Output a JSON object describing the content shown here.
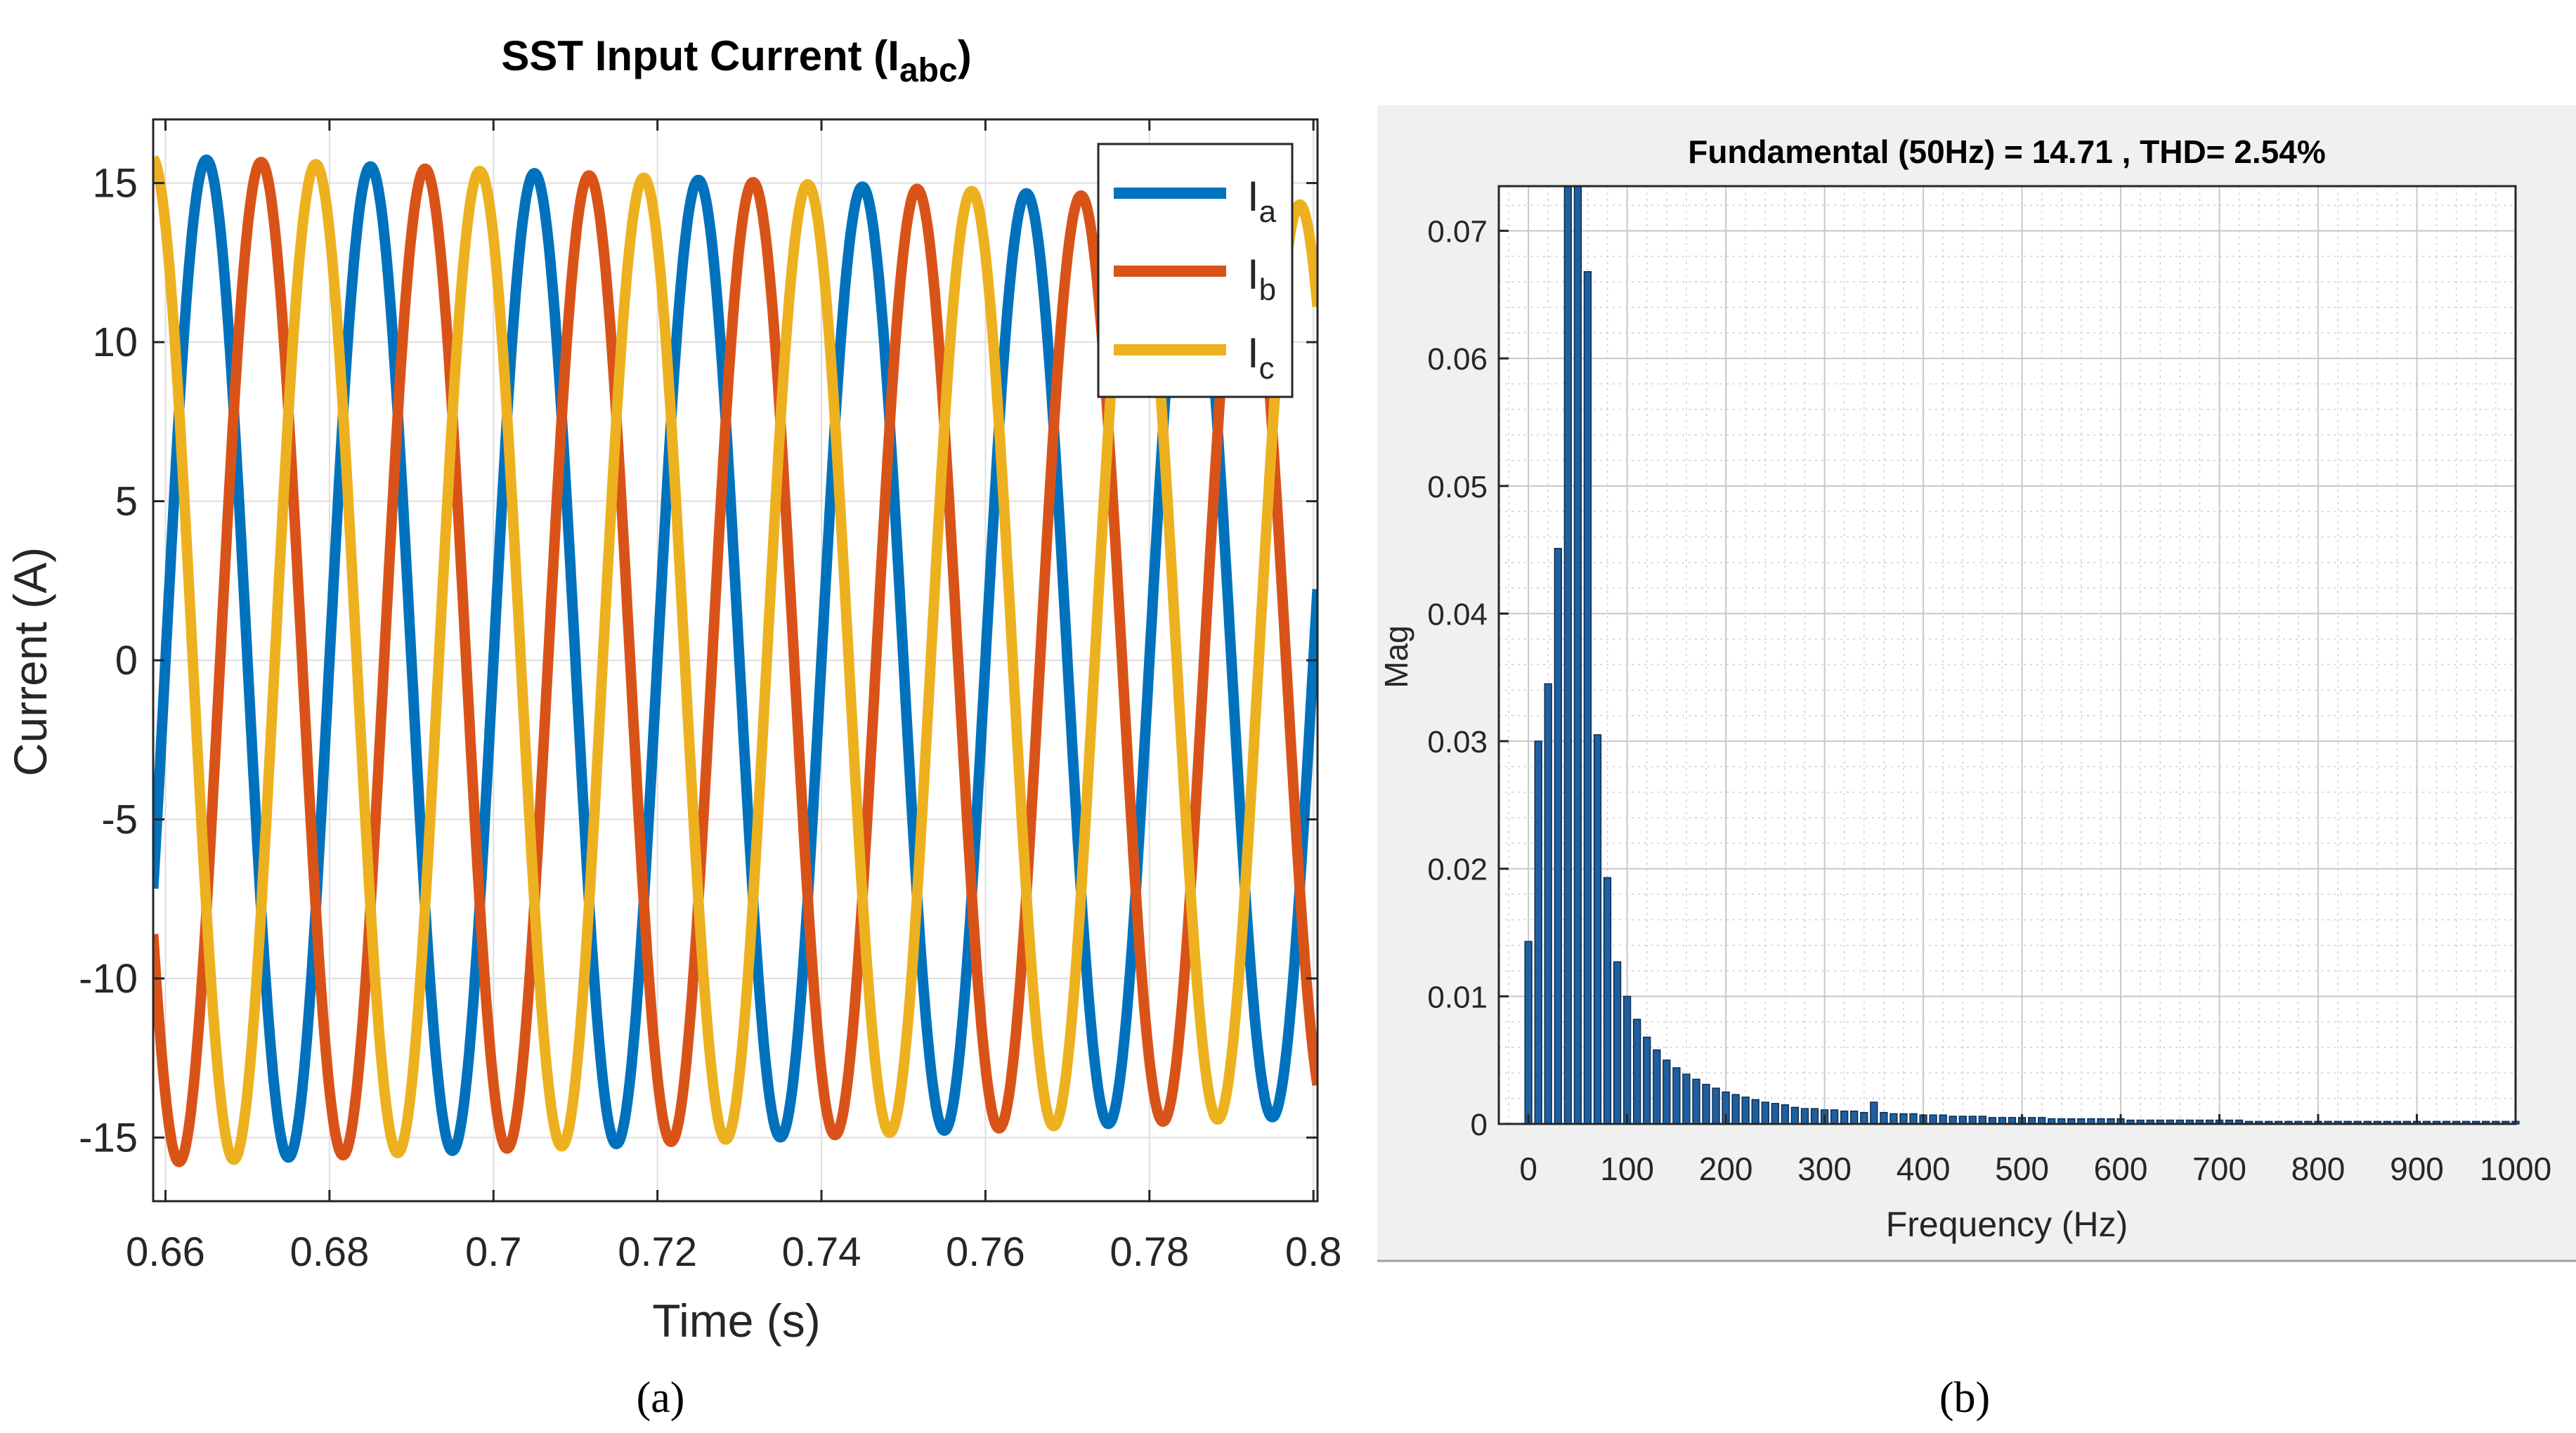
{
  "panel_a": {
    "caption": "(a)",
    "legend": [
      {
        "name": "I",
        "sub": "a",
        "color": "#0072BD"
      },
      {
        "name": "I",
        "sub": "b",
        "color": "#D95319"
      },
      {
        "name": "I",
        "sub": "c",
        "color": "#EDB120"
      }
    ]
  },
  "panel_b": {
    "caption": "(b)"
  },
  "chart_data": [
    {
      "type": "line",
      "title": "SST Input Current (I",
      "title_sub": "abc",
      "title_close": ")",
      "xlabel": "Time (s)",
      "ylabel": "Current (A)",
      "xlim": [
        0.6585,
        0.8005
      ],
      "ylim": [
        -17,
        17
      ],
      "xticks": [
        0.66,
        0.68,
        0.7,
        0.72,
        0.74,
        0.76,
        0.78,
        0.8
      ],
      "xtick_labels": [
        "0.66",
        "0.68",
        "0.7",
        "0.72",
        "0.74",
        "0.76",
        "0.78",
        "0.8"
      ],
      "yticks": [
        -15,
        -10,
        -5,
        0,
        5,
        10,
        15
      ],
      "ytick_labels": [
        "-15",
        "-10",
        "-5",
        "0",
        "5",
        "10",
        "15"
      ],
      "grid": true,
      "legend_position": "top-right",
      "frequency_hz": 50,
      "series": [
        {
          "name": "Ia",
          "color": "#0072BD",
          "phase_offset_deg": 0,
          "amplitude_start": 15.8,
          "amplitude_end": 14.3
        },
        {
          "name": "Ib",
          "color": "#D95319",
          "phase_offset_deg": -120,
          "amplitude_start": 15.8,
          "amplitude_end": 14.3
        },
        {
          "name": "Ic",
          "color": "#EDB120",
          "phase_offset_deg": 120,
          "amplitude_start": 15.8,
          "amplitude_end": 14.3
        }
      ],
      "zero_crossing_ia_rising_s": 0.66
    },
    {
      "type": "bar",
      "title": "Fundamental (50Hz) = 14.71 , THD= 2.54%",
      "xlabel": "Frequency (Hz)",
      "ylabel": "Mag",
      "xlim": [
        -30,
        1000
      ],
      "ylim": [
        0,
        0.0735
      ],
      "xticks": [
        0,
        100,
        200,
        300,
        400,
        500,
        600,
        700,
        800,
        900,
        1000
      ],
      "xtick_labels": [
        "0",
        "100",
        "200",
        "300",
        "400",
        "500",
        "600",
        "700",
        "800",
        "900",
        "1000"
      ],
      "yticks": [
        0,
        0.01,
        0.02,
        0.03,
        0.04,
        0.05,
        0.06,
        0.07
      ],
      "ytick_labels": [
        "0",
        "0.01",
        "0.02",
        "0.03",
        "0.04",
        "0.05",
        "0.06",
        "0.07"
      ],
      "grid": true,
      "bar_color": "#1f5fa0",
      "bar_spacing_hz": 10,
      "bars": [
        {
          "f": 0,
          "v": 0.0143
        },
        {
          "f": 10,
          "v": 0.03
        },
        {
          "f": 20,
          "v": 0.0345
        },
        {
          "f": 30,
          "v": 0.0451
        },
        {
          "f": 40,
          "v": 0.0735
        },
        {
          "f": 50,
          "v": 0.0735
        },
        {
          "f": 60,
          "v": 0.0668
        },
        {
          "f": 70,
          "v": 0.0305
        },
        {
          "f": 80,
          "v": 0.0193
        },
        {
          "f": 90,
          "v": 0.0127
        },
        {
          "f": 100,
          "v": 0.01
        },
        {
          "f": 110,
          "v": 0.0082
        },
        {
          "f": 120,
          "v": 0.0068
        },
        {
          "f": 130,
          "v": 0.0058
        },
        {
          "f": 140,
          "v": 0.005
        },
        {
          "f": 150,
          "v": 0.0044
        },
        {
          "f": 160,
          "v": 0.0039
        },
        {
          "f": 170,
          "v": 0.0035
        },
        {
          "f": 180,
          "v": 0.0031
        },
        {
          "f": 190,
          "v": 0.0028
        },
        {
          "f": 200,
          "v": 0.0025
        },
        {
          "f": 210,
          "v": 0.0023
        },
        {
          "f": 220,
          "v": 0.0021
        },
        {
          "f": 230,
          "v": 0.0019
        },
        {
          "f": 240,
          "v": 0.0017
        },
        {
          "f": 250,
          "v": 0.0016
        },
        {
          "f": 260,
          "v": 0.0015
        },
        {
          "f": 270,
          "v": 0.0013
        },
        {
          "f": 280,
          "v": 0.0012
        },
        {
          "f": 290,
          "v": 0.0012
        },
        {
          "f": 300,
          "v": 0.0011
        },
        {
          "f": 310,
          "v": 0.0011
        },
        {
          "f": 320,
          "v": 0.001
        },
        {
          "f": 330,
          "v": 0.001
        },
        {
          "f": 340,
          "v": 0.0009
        },
        {
          "f": 350,
          "v": 0.0017
        },
        {
          "f": 360,
          "v": 0.0009
        },
        {
          "f": 370,
          "v": 0.0008
        },
        {
          "f": 380,
          "v": 0.0008
        },
        {
          "f": 390,
          "v": 0.0008
        },
        {
          "f": 400,
          "v": 0.0007
        },
        {
          "f": 410,
          "v": 0.0007
        },
        {
          "f": 420,
          "v": 0.0007
        },
        {
          "f": 430,
          "v": 0.0006
        },
        {
          "f": 440,
          "v": 0.0006
        },
        {
          "f": 450,
          "v": 0.0006
        },
        {
          "f": 460,
          "v": 0.0006
        },
        {
          "f": 470,
          "v": 0.0005
        },
        {
          "f": 480,
          "v": 0.0005
        },
        {
          "f": 490,
          "v": 0.0005
        },
        {
          "f": 500,
          "v": 0.0005
        },
        {
          "f": 510,
          "v": 0.0005
        },
        {
          "f": 520,
          "v": 0.0005
        },
        {
          "f": 530,
          "v": 0.0004
        },
        {
          "f": 540,
          "v": 0.0004
        },
        {
          "f": 550,
          "v": 0.0004
        },
        {
          "f": 560,
          "v": 0.0004
        },
        {
          "f": 570,
          "v": 0.0004
        },
        {
          "f": 580,
          "v": 0.0004
        },
        {
          "f": 590,
          "v": 0.0004
        },
        {
          "f": 600,
          "v": 0.0004
        },
        {
          "f": 610,
          "v": 0.0003
        },
        {
          "f": 620,
          "v": 0.0003
        },
        {
          "f": 630,
          "v": 0.0003
        },
        {
          "f": 640,
          "v": 0.0003
        },
        {
          "f": 650,
          "v": 0.0003
        },
        {
          "f": 660,
          "v": 0.0003
        },
        {
          "f": 670,
          "v": 0.0003
        },
        {
          "f": 680,
          "v": 0.0003
        },
        {
          "f": 690,
          "v": 0.0003
        },
        {
          "f": 700,
          "v": 0.0003
        },
        {
          "f": 710,
          "v": 0.0003
        },
        {
          "f": 720,
          "v": 0.0003
        },
        {
          "f": 730,
          "v": 0.0002
        },
        {
          "f": 740,
          "v": 0.0002
        },
        {
          "f": 750,
          "v": 0.0002
        },
        {
          "f": 760,
          "v": 0.0002
        },
        {
          "f": 770,
          "v": 0.0002
        },
        {
          "f": 780,
          "v": 0.0002
        },
        {
          "f": 790,
          "v": 0.0002
        },
        {
          "f": 800,
          "v": 0.0002
        },
        {
          "f": 810,
          "v": 0.0002
        },
        {
          "f": 820,
          "v": 0.0002
        },
        {
          "f": 830,
          "v": 0.0002
        },
        {
          "f": 840,
          "v": 0.0002
        },
        {
          "f": 850,
          "v": 0.0002
        },
        {
          "f": 860,
          "v": 0.0002
        },
        {
          "f": 870,
          "v": 0.0002
        },
        {
          "f": 880,
          "v": 0.0002
        },
        {
          "f": 890,
          "v": 0.0002
        },
        {
          "f": 900,
          "v": 0.0002
        },
        {
          "f": 910,
          "v": 0.0002
        },
        {
          "f": 920,
          "v": 0.0002
        },
        {
          "f": 930,
          "v": 0.0002
        },
        {
          "f": 940,
          "v": 0.0002
        },
        {
          "f": 950,
          "v": 0.0002
        },
        {
          "f": 960,
          "v": 0.0002
        },
        {
          "f": 970,
          "v": 0.0002
        },
        {
          "f": 980,
          "v": 0.0002
        },
        {
          "f": 990,
          "v": 0.0002
        },
        {
          "f": 1000,
          "v": 0.0002
        }
      ]
    }
  ]
}
